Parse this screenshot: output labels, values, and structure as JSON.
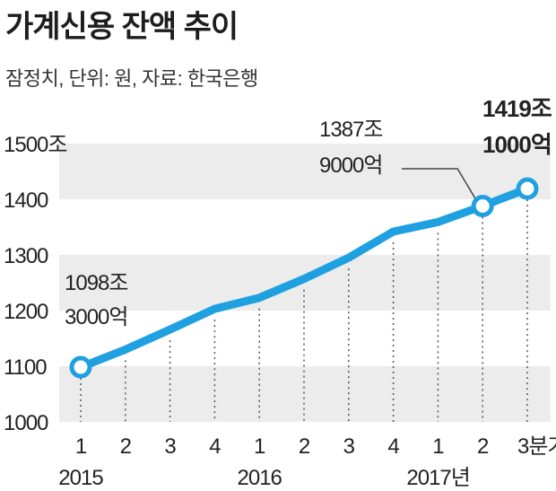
{
  "header": {
    "title": "가계신용 잔액 추이",
    "subtitle": "잠정치, 단위: 원, 자료: 한국은행"
  },
  "chart_data": {
    "type": "line",
    "title": "가계신용 잔액 추이",
    "subtitle": "잠정치, 단위: 원, 자료: 한국은행",
    "y_unit_label": "1500조",
    "yticks": [
      "1500조",
      "1400",
      "1300",
      "1200",
      "1100",
      "1000"
    ],
    "ytick_values": [
      1500,
      1400,
      1300,
      1200,
      1100,
      1000
    ],
    "ylim": [
      1000,
      1500
    ],
    "categories": [
      "1",
      "2",
      "3",
      "4",
      "1",
      "2",
      "3",
      "4",
      "1",
      "2",
      "3분기"
    ],
    "year_labels": [
      {
        "label": "2015",
        "index": 0
      },
      {
        "label": "2016",
        "index": 4
      },
      {
        "label": "2017년",
        "index": 8
      }
    ],
    "series": [
      {
        "values": [
          1098.3,
          1130,
          1166,
          1203,
          1223,
          1257,
          1295,
          1342,
          1359,
          1387.9,
          1419.1
        ],
        "color": "#1fa0e0"
      }
    ],
    "markers": [
      0,
      9,
      10
    ],
    "annotations": [
      {
        "index": 0,
        "lines": [
          "1098조",
          "3000억"
        ],
        "bold": false
      },
      {
        "index": 9,
        "lines": [
          "1387조",
          "9000억"
        ],
        "bold": false
      },
      {
        "index": 10,
        "lines": [
          "1419조",
          "1000억"
        ],
        "bold": true
      }
    ],
    "grid": "alternating-bands",
    "colors": {
      "line": "#1fa0e0",
      "band": "#ececec",
      "marker_fill": "#ffffff"
    }
  }
}
